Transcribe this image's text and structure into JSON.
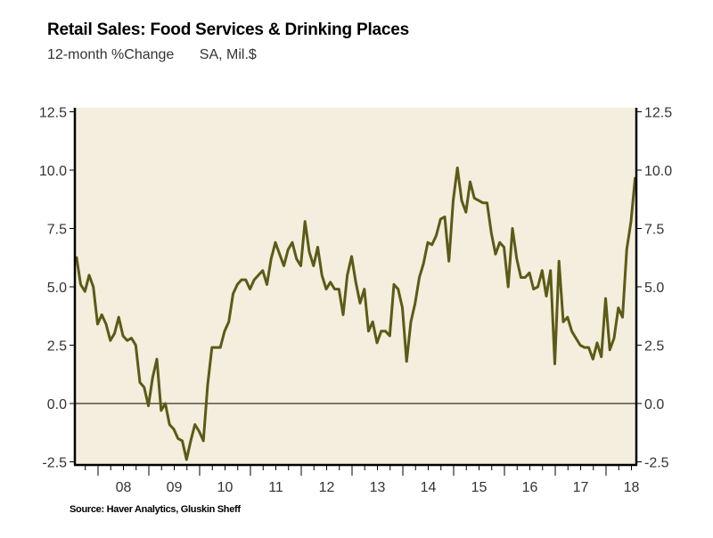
{
  "chart_data": {
    "type": "line",
    "title": "Retail Sales: Food Services & Drinking Places",
    "subtitle": "12-month %Change",
    "units": "SA, Mil.$",
    "source": "Source: Haver Analytics, Gluskin Sheff",
    "xlabel": "",
    "ylabel": "",
    "x_start": "2007-08",
    "x_end": "2018-08",
    "frequency": "monthly",
    "x_range": [
      2007.5,
      2018.6
    ],
    "ylim": [
      -2.5,
      12.5
    ],
    "yticks": [
      -2.5,
      0.0,
      2.5,
      5.0,
      7.5,
      10.0,
      12.5
    ],
    "ytick_labels": [
      "-2.5",
      "0.0",
      "2.5",
      "5.0",
      "7.5",
      "10.0",
      "12.5"
    ],
    "xtick_labels": [
      "08",
      "09",
      "10",
      "11",
      "12",
      "13",
      "14",
      "15",
      "16",
      "17",
      "18"
    ],
    "xtick_years": [
      2008,
      2009,
      2010,
      2011,
      2012,
      2013,
      2014,
      2015,
      2016,
      2017,
      2018
    ],
    "zero_line": true,
    "grid": false,
    "legend": "none",
    "colors": {
      "line": "#5c5a16",
      "plot_background": "#f3eedd",
      "axis": "#000000"
    },
    "series": [
      {
        "name": "Food Services & Drinking Places, 12-month %Change",
        "values": [
          6.3,
          5.1,
          4.8,
          5.5,
          5.0,
          3.4,
          3.8,
          3.4,
          2.7,
          3.0,
          3.7,
          2.9,
          2.7,
          2.8,
          2.5,
          0.9,
          0.7,
          -0.1,
          1.1,
          1.9,
          -0.3,
          0.0,
          -0.9,
          -1.1,
          -1.5,
          -1.6,
          -2.4,
          -1.6,
          -0.9,
          -1.2,
          -1.6,
          0.8,
          2.4,
          2.4,
          2.4,
          3.1,
          3.5,
          4.7,
          5.1,
          5.3,
          5.3,
          4.9,
          5.3,
          5.5,
          5.7,
          5.1,
          6.2,
          6.9,
          6.4,
          5.9,
          6.6,
          6.9,
          6.2,
          5.9,
          7.8,
          6.5,
          5.9,
          6.7,
          5.5,
          4.9,
          5.2,
          4.9,
          4.9,
          3.8,
          5.5,
          6.3,
          5.2,
          4.3,
          4.9,
          3.1,
          3.5,
          2.6,
          3.1,
          3.1,
          2.9,
          5.1,
          4.9,
          4.1,
          1.8,
          3.5,
          4.3,
          5.4,
          6.0,
          6.9,
          6.8,
          7.2,
          7.9,
          8.0,
          6.1,
          8.7,
          10.1,
          8.7,
          8.2,
          9.5,
          8.8,
          8.7,
          8.6,
          8.6,
          7.3,
          6.4,
          6.9,
          6.7,
          5.0,
          7.5,
          6.2,
          5.4,
          5.4,
          5.6,
          4.9,
          5.0,
          5.7,
          4.6,
          5.7,
          1.7,
          6.1,
          3.5,
          3.7,
          3.1,
          2.8,
          2.5,
          2.4,
          2.4,
          1.9,
          2.6,
          2.0,
          4.5,
          2.3,
          2.8,
          4.1,
          3.7,
          6.6,
          7.8,
          9.7
        ]
      }
    ]
  }
}
